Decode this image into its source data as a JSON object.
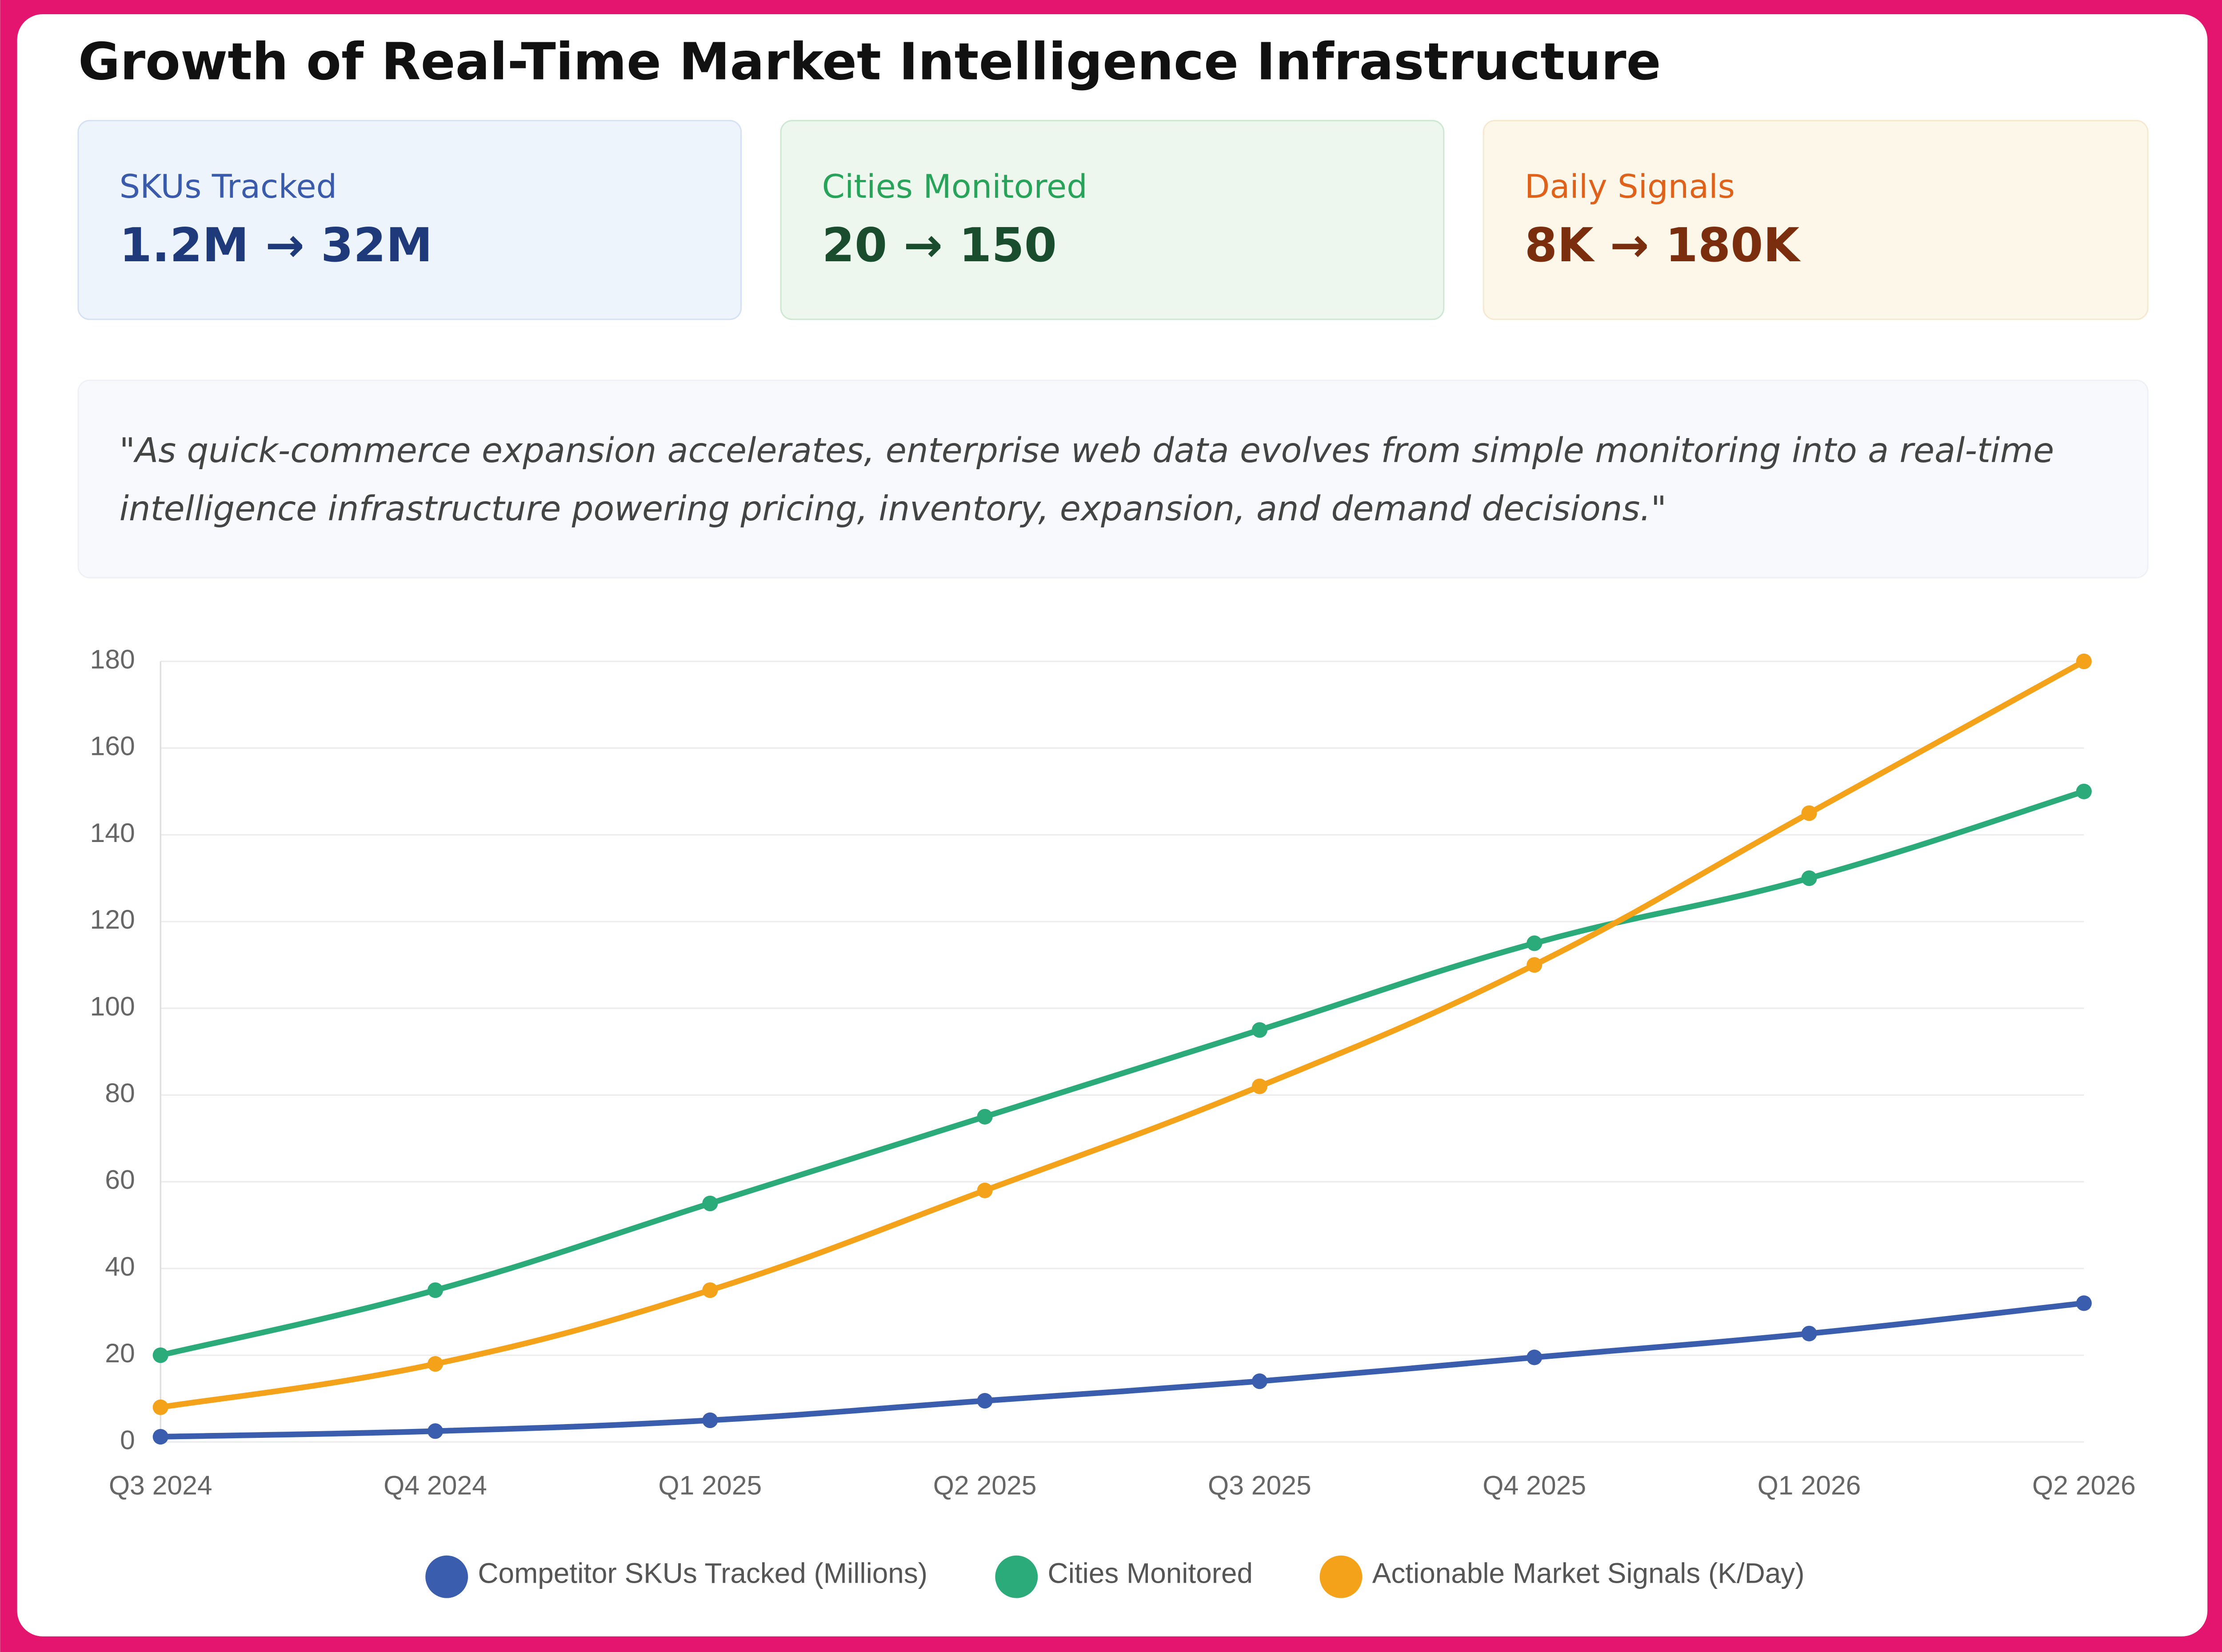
{
  "header": {
    "title": "Growth of Real-Time Market Intelligence Infrastructure"
  },
  "cards": [
    {
      "label": "SKUs Tracked",
      "value": "1.2M → 32M"
    },
    {
      "label": "Cities Monitored",
      "value": "20 → 150"
    },
    {
      "label": "Daily Signals",
      "value": "8K → 180K"
    }
  ],
  "quote": [
    "\"As quick-commerce expansion accelerates, enterprise web data evolves from simple monitoring into a real-time",
    "intelligence infrastructure powering pricing, inventory, expansion, and demand decisions.\""
  ],
  "chart_data": {
    "type": "line",
    "categories": [
      "Q3 2024",
      "Q4 2024",
      "Q1 2025",
      "Q2 2025",
      "Q3 2025",
      "Q4 2025",
      "Q1 2026",
      "Q2 2026"
    ],
    "series": [
      {
        "name": "Competitor SKUs Tracked (Millions)",
        "color": "#3a5dae",
        "values": [
          1.2,
          2.5,
          5,
          9.5,
          14,
          19.5,
          25,
          32
        ]
      },
      {
        "name": "Cities Monitored",
        "color": "#2bab7a",
        "values": [
          20,
          35,
          55,
          75,
          95,
          115,
          130,
          150
        ]
      },
      {
        "name": "Actionable Market Signals (K/Day)",
        "color": "#f5a21b",
        "values": [
          8,
          18,
          35,
          58,
          82,
          110,
          145,
          180
        ]
      }
    ],
    "ylim": [
      0,
      180
    ],
    "yticks": [
      0,
      20,
      40,
      60,
      80,
      100,
      120,
      140,
      160,
      180
    ],
    "grid": true,
    "legend": "bottom"
  }
}
